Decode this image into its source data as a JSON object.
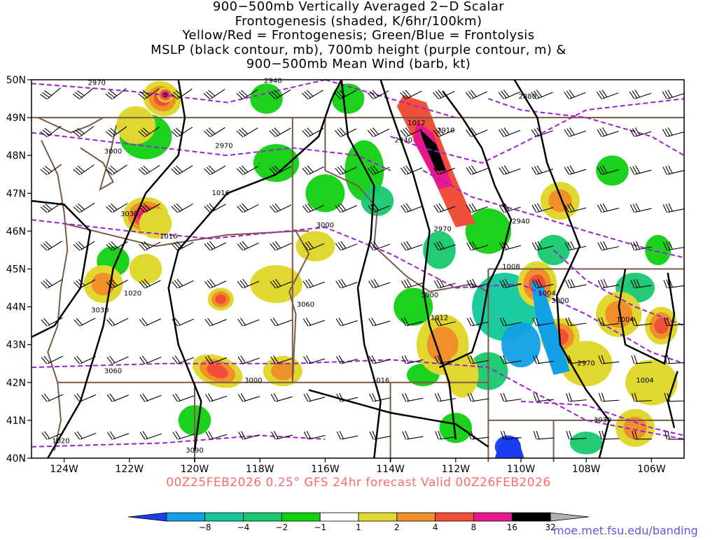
{
  "title_lines": [
    "900−500mb Vertically Averaged 2−D Scalar",
    "Frontogenesis (shaded, K/6hr/100km)",
    "Yellow/Red = Frontogenesis;  Green/Blue = Frontolysis",
    "MSLP (black contour, mb), 700mb height (purple contour, m) &",
    "900−500mb Mean Wind (barb, kt)"
  ],
  "forecast_label": "00Z25FEB2026 0.25° GFS 24hr forecast Valid 00Z26FEB2026",
  "source_url": "moe.met.fsu.edu/banding",
  "map": {
    "lat_labels": [
      "50N",
      "49N",
      "48N",
      "47N",
      "46N",
      "45N",
      "44N",
      "43N",
      "42N",
      "41N",
      "40N"
    ],
    "lat_values": [
      50,
      49,
      48,
      47,
      46,
      45,
      44,
      43,
      42,
      41,
      40
    ],
    "lon_labels": [
      "124W",
      "122W",
      "120W",
      "118W",
      "116W",
      "114W",
      "112W",
      "110W",
      "108W",
      "106W"
    ],
    "lon_values": [
      -124,
      -122,
      -120,
      -118,
      -116,
      -114,
      -112,
      -110,
      -108,
      -106
    ],
    "extent": {
      "lon_min": -125,
      "lon_max": -105,
      "lat_min": 40,
      "lat_max": 50
    },
    "mslp_contour_labels": [
      "1016",
      "1012",
      "1008",
      "1004",
      "1004",
      "1004",
      "1020",
      "1012",
      "1016",
      "1020",
      "1016"
    ],
    "height_contour_labels": [
      "2970",
      "2940",
      "2880",
      "2970",
      "3000",
      "2940",
      "2910",
      "2970",
      "2940",
      "3000",
      "3030",
      "3000",
      "3060",
      "3030",
      "3000",
      "2970",
      "3000",
      "3090",
      "3060",
      "3030"
    ],
    "colorbar": {
      "tick_labels": [
        "−8",
        "−4",
        "−2",
        "−1",
        "1",
        "2",
        "4",
        "8",
        "16",
        "32"
      ],
      "colors": [
        "#1a3df0",
        "#12a0e6",
        "#10c89a",
        "#18c870",
        "#10d010",
        "#ffffff",
        "#e0d830",
        "#f09028",
        "#f05038",
        "#e8188c",
        "#000000",
        "#b0b0b0"
      ]
    },
    "colors": {
      "border": "#7a5a46",
      "mslp": "#000000",
      "height": "#a020d0",
      "barb": "#000000"
    }
  }
}
